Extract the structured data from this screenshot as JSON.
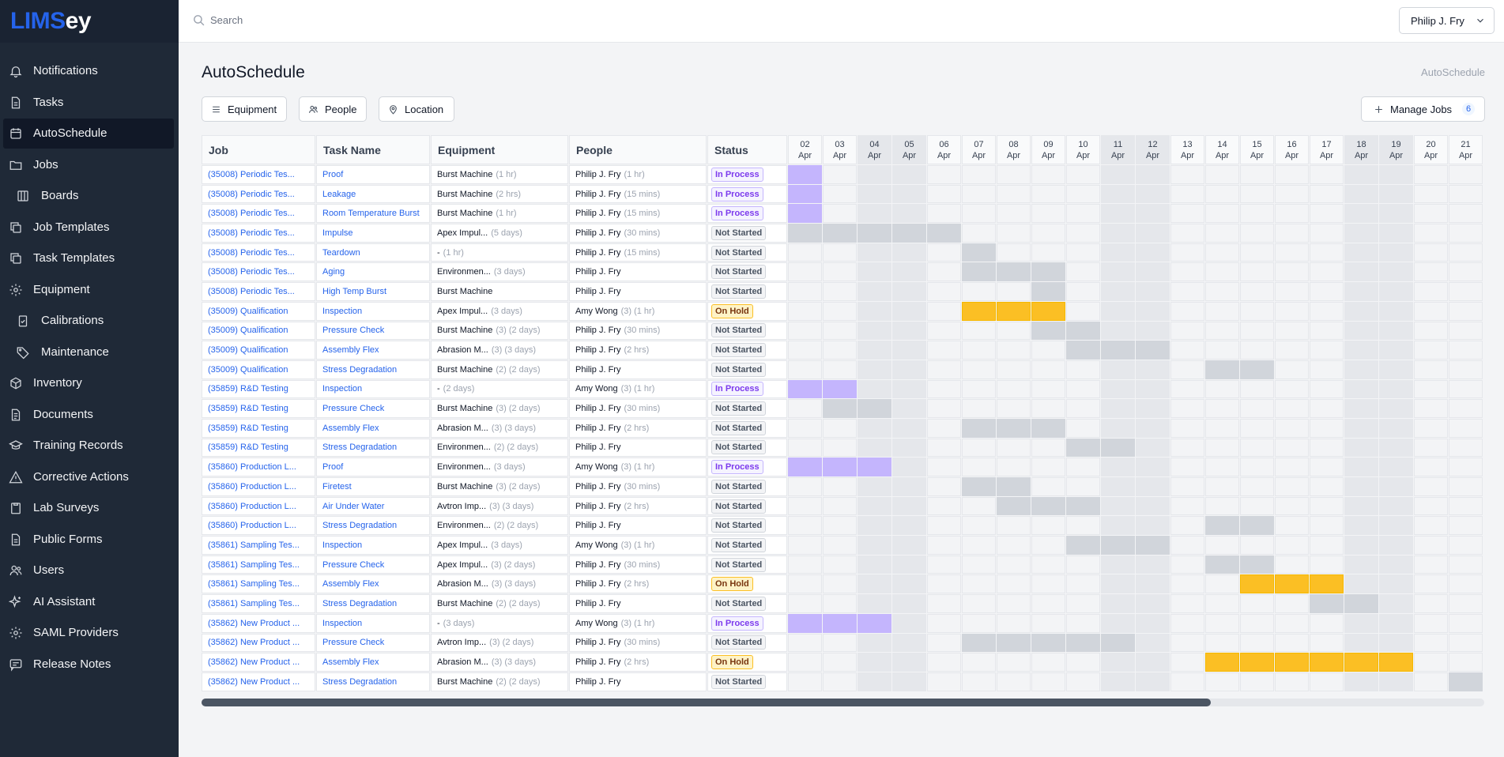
{
  "app": {
    "logo_part1": "LIMS",
    "logo_part2": "ey"
  },
  "sidebar": {
    "items": [
      {
        "label": "Notifications",
        "icon": "bell-icon",
        "name": "notifications"
      },
      {
        "label": "Tasks",
        "icon": "file-icon",
        "name": "tasks"
      },
      {
        "label": "AutoSchedule",
        "icon": "calendar-icon",
        "name": "autoschedule",
        "active": true
      },
      {
        "label": "Jobs",
        "icon": "folder-icon",
        "name": "jobs"
      },
      {
        "label": "Boards",
        "icon": "columns-icon",
        "name": "boards",
        "sub": true
      },
      {
        "label": "Job Templates",
        "icon": "copy-icon",
        "name": "job-templates"
      },
      {
        "label": "Task Templates",
        "icon": "copy-icon",
        "name": "task-templates"
      },
      {
        "label": "Equipment",
        "icon": "gear-icon",
        "name": "equipment"
      },
      {
        "label": "Calibrations",
        "icon": "clipboard-check-icon",
        "name": "calibrations",
        "sub": true
      },
      {
        "label": "Maintenance",
        "icon": "tag-icon",
        "name": "maintenance",
        "sub": true
      },
      {
        "label": "Inventory",
        "icon": "box-icon",
        "name": "inventory"
      },
      {
        "label": "Documents",
        "icon": "document-icon",
        "name": "documents"
      },
      {
        "label": "Training Records",
        "icon": "graduation-cap-icon",
        "name": "training-records"
      },
      {
        "label": "Corrective Actions",
        "icon": "warning-icon",
        "name": "corrective-actions"
      },
      {
        "label": "Lab Surveys",
        "icon": "clipboard-icon",
        "name": "lab-surveys"
      },
      {
        "label": "Public Forms",
        "icon": "form-icon",
        "name": "public-forms"
      },
      {
        "label": "Users",
        "icon": "users-icon",
        "name": "users"
      },
      {
        "label": "AI Assistant",
        "icon": "sparkles-icon",
        "name": "ai-assistant"
      },
      {
        "label": "SAML Providers",
        "icon": "gear-icon",
        "name": "saml-providers"
      },
      {
        "label": "Release Notes",
        "icon": "message-icon",
        "name": "release-notes"
      }
    ]
  },
  "topbar": {
    "search_placeholder": "Search",
    "user_name": "Philip J. Fry"
  },
  "page": {
    "title": "AutoSchedule",
    "breadcrumb": "AutoSchedule"
  },
  "filters": {
    "equipment": "Equipment",
    "people": "People",
    "location": "Location"
  },
  "manage": {
    "label": "Manage Jobs",
    "count": "6"
  },
  "columns": {
    "job": "Job",
    "task": "Task Name",
    "equipment": "Equipment",
    "people": "People",
    "status": "Status"
  },
  "dates": [
    {
      "day": "02",
      "month": "Apr",
      "weekend": false
    },
    {
      "day": "03",
      "month": "Apr",
      "weekend": false
    },
    {
      "day": "04",
      "month": "Apr",
      "weekend": true
    },
    {
      "day": "05",
      "month": "Apr",
      "weekend": true
    },
    {
      "day": "06",
      "month": "Apr",
      "weekend": false
    },
    {
      "day": "07",
      "month": "Apr",
      "weekend": false
    },
    {
      "day": "08",
      "month": "Apr",
      "weekend": false
    },
    {
      "day": "09",
      "month": "Apr",
      "weekend": false
    },
    {
      "day": "10",
      "month": "Apr",
      "weekend": false
    },
    {
      "day": "11",
      "month": "Apr",
      "weekend": true
    },
    {
      "day": "12",
      "month": "Apr",
      "weekend": true
    },
    {
      "day": "13",
      "month": "Apr",
      "weekend": false
    },
    {
      "day": "14",
      "month": "Apr",
      "weekend": false
    },
    {
      "day": "15",
      "month": "Apr",
      "weekend": false
    },
    {
      "day": "16",
      "month": "Apr",
      "weekend": false
    },
    {
      "day": "17",
      "month": "Apr",
      "weekend": false
    },
    {
      "day": "18",
      "month": "Apr",
      "weekend": true
    },
    {
      "day": "19",
      "month": "Apr",
      "weekend": true
    },
    {
      "day": "20",
      "month": "Apr",
      "weekend": false
    },
    {
      "day": "21",
      "month": "Apr",
      "weekend": false
    }
  ],
  "rows": [
    {
      "job": "(35008) Periodic Tes...",
      "task": "Proof",
      "eq": "Burst Machine",
      "eq_extra": "(1 hr)",
      "person": "Philip J. Fry",
      "person_extra": "(1 hr)",
      "status": "In Process",
      "sk": "ip",
      "span": [
        0,
        0
      ]
    },
    {
      "job": "(35008) Periodic Tes...",
      "task": "Leakage",
      "eq": "Burst Machine",
      "eq_extra": "(2 hrs)",
      "person": "Philip J. Fry",
      "person_extra": "(15 mins)",
      "status": "In Process",
      "sk": "ip",
      "span": [
        0,
        0
      ]
    },
    {
      "job": "(35008) Periodic Tes...",
      "task": "Room Temperature Burst",
      "eq": "Burst Machine",
      "eq_extra": "(1 hr)",
      "person": "Philip J. Fry",
      "person_extra": "(15 mins)",
      "status": "In Process",
      "sk": "ip",
      "span": [
        0,
        0
      ]
    },
    {
      "job": "(35008) Periodic Tes...",
      "task": "Impulse",
      "eq": "Apex Impul...",
      "eq_extra": "(5 days)",
      "person": "Philip J. Fry",
      "person_extra": "(30 mins)",
      "status": "Not Started",
      "sk": "ns",
      "span": [
        0,
        4
      ]
    },
    {
      "job": "(35008) Periodic Tes...",
      "task": "Teardown",
      "eq": "-",
      "eq_extra": "(1 hr)",
      "person": "Philip J. Fry",
      "person_extra": "(15 mins)",
      "status": "Not Started",
      "sk": "ns",
      "span": [
        5,
        5
      ]
    },
    {
      "job": "(35008) Periodic Tes...",
      "task": "Aging",
      "eq": "Environmen...",
      "eq_extra": "(3 days)",
      "person": "Philip J. Fry",
      "person_extra": "",
      "status": "Not Started",
      "sk": "ns",
      "span": [
        5,
        7
      ]
    },
    {
      "job": "(35008) Periodic Tes...",
      "task": "High Temp Burst",
      "eq": "Burst Machine",
      "eq_extra": "",
      "person": "Philip J. Fry",
      "person_extra": "",
      "status": "Not Started",
      "sk": "ns",
      "span": [
        7,
        7
      ]
    },
    {
      "job": "(35009) Qualification",
      "task": "Inspection",
      "eq": "Apex Impul...",
      "eq_extra": "(3 days)",
      "person": "Amy Wong",
      "person_extra": "(3) (1 hr)",
      "status": "On Hold",
      "sk": "oh",
      "span": [
        5,
        7
      ]
    },
    {
      "job": "(35009) Qualification",
      "task": "Pressure Check",
      "eq": "Burst Machine",
      "eq_extra": "(3) (2 days)",
      "person": "Philip J. Fry",
      "person_extra": "(30 mins)",
      "status": "Not Started",
      "sk": "ns",
      "span": [
        7,
        8
      ]
    },
    {
      "job": "(35009) Qualification",
      "task": "Assembly Flex",
      "eq": "Abrasion M...",
      "eq_extra": "(3) (3 days)",
      "person": "Philip J. Fry",
      "person_extra": "(2 hrs)",
      "status": "Not Started",
      "sk": "ns",
      "span": [
        8,
        10
      ]
    },
    {
      "job": "(35009) Qualification",
      "task": "Stress Degradation",
      "eq": "Burst Machine",
      "eq_extra": "(2) (2 days)",
      "person": "Philip J. Fry",
      "person_extra": "",
      "status": "Not Started",
      "sk": "ns",
      "span": [
        12,
        13
      ]
    },
    {
      "job": "(35859) R&D Testing",
      "task": "Inspection",
      "eq": "-",
      "eq_extra": "(2 days)",
      "person": "Amy Wong",
      "person_extra": "(3) (1 hr)",
      "status": "In Process",
      "sk": "ip",
      "span": [
        0,
        1
      ]
    },
    {
      "job": "(35859) R&D Testing",
      "task": "Pressure Check",
      "eq": "Burst Machine",
      "eq_extra": "(3) (2 days)",
      "person": "Philip J. Fry",
      "person_extra": "(30 mins)",
      "status": "Not Started",
      "sk": "ns",
      "span": [
        1,
        2
      ]
    },
    {
      "job": "(35859) R&D Testing",
      "task": "Assembly Flex",
      "eq": "Abrasion M...",
      "eq_extra": "(3) (3 days)",
      "person": "Philip J. Fry",
      "person_extra": "(2 hrs)",
      "status": "Not Started",
      "sk": "ns",
      "span": [
        5,
        7
      ]
    },
    {
      "job": "(35859) R&D Testing",
      "task": "Stress Degradation",
      "eq": "Environmen...",
      "eq_extra": "(2) (2 days)",
      "person": "Philip J. Fry",
      "person_extra": "",
      "status": "Not Started",
      "sk": "ns",
      "span": [
        8,
        9
      ]
    },
    {
      "job": "(35860) Production L...",
      "task": "Proof",
      "eq": "Environmen...",
      "eq_extra": "(3 days)",
      "person": "Amy Wong",
      "person_extra": "(3) (1 hr)",
      "status": "In Process",
      "sk": "ip",
      "span": [
        0,
        2
      ]
    },
    {
      "job": "(35860) Production L...",
      "task": "Firetest",
      "eq": "Burst Machine",
      "eq_extra": "(3) (2 days)",
      "person": "Philip J. Fry",
      "person_extra": "(30 mins)",
      "status": "Not Started",
      "sk": "ns",
      "span": [
        5,
        6
      ]
    },
    {
      "job": "(35860) Production L...",
      "task": "Air Under Water",
      "eq": "Avtron Imp...",
      "eq_extra": "(3) (3 days)",
      "person": "Philip J. Fry",
      "person_extra": "(2 hrs)",
      "status": "Not Started",
      "sk": "ns",
      "span": [
        6,
        8
      ]
    },
    {
      "job": "(35860) Production L...",
      "task": "Stress Degradation",
      "eq": "Environmen...",
      "eq_extra": "(2) (2 days)",
      "person": "Philip J. Fry",
      "person_extra": "",
      "status": "Not Started",
      "sk": "ns",
      "span": [
        12,
        13
      ]
    },
    {
      "job": "(35861) Sampling Tes...",
      "task": "Inspection",
      "eq": "Apex Impul...",
      "eq_extra": "(3 days)",
      "person": "Amy Wong",
      "person_extra": "(3) (1 hr)",
      "status": "Not Started",
      "sk": "ns",
      "span": [
        8,
        10
      ]
    },
    {
      "job": "(35861) Sampling Tes...",
      "task": "Pressure Check",
      "eq": "Apex Impul...",
      "eq_extra": "(3) (2 days)",
      "person": "Philip J. Fry",
      "person_extra": "(30 mins)",
      "status": "Not Started",
      "sk": "ns",
      "span": [
        12,
        13
      ]
    },
    {
      "job": "(35861) Sampling Tes...",
      "task": "Assembly Flex",
      "eq": "Abrasion M...",
      "eq_extra": "(3) (3 days)",
      "person": "Philip J. Fry",
      "person_extra": "(2 hrs)",
      "status": "On Hold",
      "sk": "oh",
      "span": [
        13,
        15
      ]
    },
    {
      "job": "(35861) Sampling Tes...",
      "task": "Stress Degradation",
      "eq": "Burst Machine",
      "eq_extra": "(2) (2 days)",
      "person": "Philip J. Fry",
      "person_extra": "",
      "status": "Not Started",
      "sk": "ns",
      "span": [
        15,
        16
      ]
    },
    {
      "job": "(35862) New Product ...",
      "task": "Inspection",
      "eq": "-",
      "eq_extra": "(3 days)",
      "person": "Amy Wong",
      "person_extra": "(3) (1 hr)",
      "status": "In Process",
      "sk": "ip",
      "span": [
        0,
        2
      ]
    },
    {
      "job": "(35862) New Product ...",
      "task": "Pressure Check",
      "eq": "Avtron Imp...",
      "eq_extra": "(3) (2 days)",
      "person": "Philip J. Fry",
      "person_extra": "(30 mins)",
      "status": "Not Started",
      "sk": "ns",
      "span": [
        5,
        9
      ]
    },
    {
      "job": "(35862) New Product ...",
      "task": "Assembly Flex",
      "eq": "Abrasion M...",
      "eq_extra": "(3) (3 days)",
      "person": "Philip J. Fry",
      "person_extra": "(2 hrs)",
      "status": "On Hold",
      "sk": "oh",
      "span": [
        12,
        17
      ]
    },
    {
      "job": "(35862) New Product ...",
      "task": "Stress Degradation",
      "eq": "Burst Machine",
      "eq_extra": "(2) (2 days)",
      "person": "Philip J. Fry",
      "person_extra": "",
      "status": "Not Started",
      "sk": "ns",
      "span": [
        19,
        19
      ]
    }
  ],
  "colors": {
    "accent": "#2563eb",
    "in_process": "#c4b5fd",
    "not_started": "#d1d5db",
    "on_hold": "#fbbf24",
    "sidebar_bg": "#1f2937"
  }
}
